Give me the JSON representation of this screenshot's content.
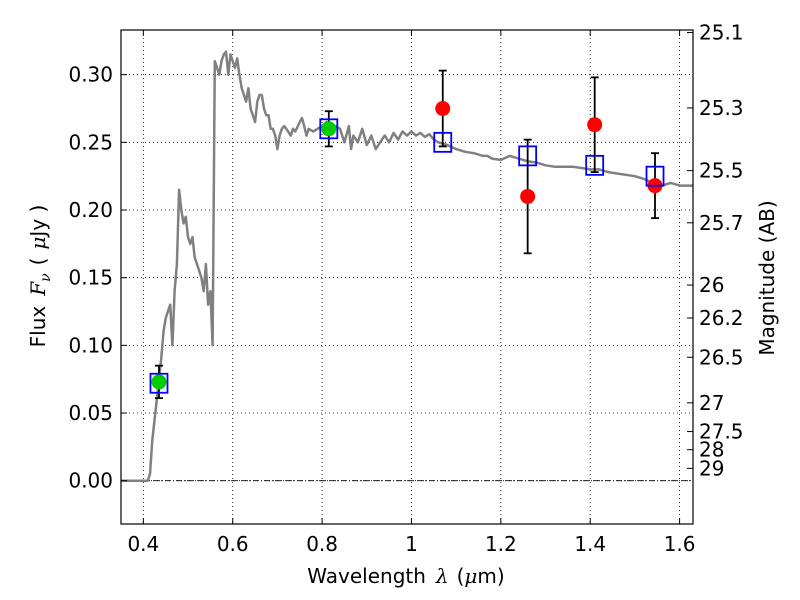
{
  "chart_data": {
    "type": "scatter",
    "xlabel": "Wavelength",
    "xlabel_symbol": "λ",
    "xlabel_unit_open": "(",
    "xlabel_unit_mu": "μ",
    "xlabel_unit_rest": "m)",
    "ylabel": "Flux",
    "ylabel_symbol": "F",
    "ylabel_symbol_sub": "ν",
    "ylabel_unit_open": "(",
    "ylabel_unit_mu": "μ",
    "ylabel_unit_rest": "Jy )",
    "y2label": "Magnitude (AB)",
    "xlim": [
      0.35,
      1.63
    ],
    "ylim": [
      -0.032,
      0.333
    ],
    "grid": true,
    "x_ticks": [
      {
        "value": 0.4,
        "label": "0.4"
      },
      {
        "value": 0.6,
        "label": "0.6"
      },
      {
        "value": 0.8,
        "label": "0.8"
      },
      {
        "value": 1.0,
        "label": "1"
      },
      {
        "value": 1.2,
        "label": "1.2"
      },
      {
        "value": 1.4,
        "label": "1.4"
      },
      {
        "value": 1.6,
        "label": "1.6"
      }
    ],
    "y_ticks": [
      {
        "value": 0.0,
        "label": "0.00"
      },
      {
        "value": 0.05,
        "label": "0.05"
      },
      {
        "value": 0.1,
        "label": "0.10"
      },
      {
        "value": 0.15,
        "label": "0.15"
      },
      {
        "value": 0.2,
        "label": "0.20"
      },
      {
        "value": 0.25,
        "label": "0.25"
      },
      {
        "value": 0.3,
        "label": "0.30"
      }
    ],
    "y2_ticks": [
      {
        "value": 25.1,
        "label": "25.1"
      },
      {
        "value": 25.3,
        "label": "25.3"
      },
      {
        "value": 25.5,
        "label": "25.5"
      },
      {
        "value": 25.7,
        "label": "25.7"
      },
      {
        "value": 26.0,
        "label": "26"
      },
      {
        "value": 26.2,
        "label": "26.2"
      },
      {
        "value": 26.5,
        "label": "26.5"
      },
      {
        "value": 27.0,
        "label": "27"
      },
      {
        "value": 27.5,
        "label": "27.5"
      },
      {
        "value": 28.0,
        "label": "28"
      },
      {
        "value": 29.0,
        "label": "29"
      }
    ],
    "colors": {
      "model": "#808080",
      "green": "#00cc00",
      "red": "#ff0000",
      "blue": "#0000ff",
      "errorbar": "#000000",
      "zero_line": "#000000",
      "grid": "#000000"
    },
    "model_spectrum": [
      [
        0.35,
        0.0
      ],
      [
        0.41,
        0.0
      ],
      [
        0.415,
        0.005
      ],
      [
        0.42,
        0.03
      ],
      [
        0.43,
        0.06
      ],
      [
        0.44,
        0.09
      ],
      [
        0.445,
        0.11
      ],
      [
        0.45,
        0.12
      ],
      [
        0.455,
        0.125
      ],
      [
        0.46,
        0.13
      ],
      [
        0.465,
        0.1
      ],
      [
        0.47,
        0.14
      ],
      [
        0.475,
        0.16
      ],
      [
        0.48,
        0.215
      ],
      [
        0.485,
        0.2
      ],
      [
        0.49,
        0.19
      ],
      [
        0.495,
        0.195
      ],
      [
        0.5,
        0.18
      ],
      [
        0.505,
        0.175
      ],
      [
        0.51,
        0.18
      ],
      [
        0.515,
        0.165
      ],
      [
        0.52,
        0.16
      ],
      [
        0.525,
        0.155
      ],
      [
        0.53,
        0.15
      ],
      [
        0.535,
        0.14
      ],
      [
        0.54,
        0.16
      ],
      [
        0.545,
        0.13
      ],
      [
        0.55,
        0.14
      ],
      [
        0.555,
        0.1
      ],
      [
        0.56,
        0.31
      ],
      [
        0.565,
        0.305
      ],
      [
        0.57,
        0.3
      ],
      [
        0.575,
        0.31
      ],
      [
        0.58,
        0.315
      ],
      [
        0.585,
        0.317
      ],
      [
        0.59,
        0.3
      ],
      [
        0.595,
        0.315
      ],
      [
        0.6,
        0.31
      ],
      [
        0.605,
        0.305
      ],
      [
        0.61,
        0.312
      ],
      [
        0.615,
        0.3
      ],
      [
        0.62,
        0.29
      ],
      [
        0.625,
        0.285
      ],
      [
        0.63,
        0.28
      ],
      [
        0.635,
        0.29
      ],
      [
        0.64,
        0.275
      ],
      [
        0.645,
        0.27
      ],
      [
        0.65,
        0.265
      ],
      [
        0.655,
        0.28
      ],
      [
        0.66,
        0.285
      ],
      [
        0.665,
        0.285
      ],
      [
        0.67,
        0.275
      ],
      [
        0.675,
        0.27
      ],
      [
        0.68,
        0.27
      ],
      [
        0.685,
        0.26
      ],
      [
        0.69,
        0.26
      ],
      [
        0.695,
        0.255
      ],
      [
        0.7,
        0.245
      ],
      [
        0.705,
        0.255
      ],
      [
        0.71,
        0.26
      ],
      [
        0.715,
        0.262
      ],
      [
        0.72,
        0.26
      ],
      [
        0.73,
        0.255
      ],
      [
        0.735,
        0.26
      ],
      [
        0.74,
        0.258
      ],
      [
        0.75,
        0.265
      ],
      [
        0.755,
        0.268
      ],
      [
        0.76,
        0.262
      ],
      [
        0.765,
        0.255
      ],
      [
        0.77,
        0.26
      ],
      [
        0.78,
        0.258
      ],
      [
        0.79,
        0.26
      ],
      [
        0.8,
        0.262
      ],
      [
        0.81,
        0.265
      ],
      [
        0.82,
        0.26
      ],
      [
        0.83,
        0.262
      ],
      [
        0.84,
        0.26
      ],
      [
        0.845,
        0.255
      ],
      [
        0.85,
        0.25
      ],
      [
        0.86,
        0.262
      ],
      [
        0.865,
        0.245
      ],
      [
        0.87,
        0.255
      ],
      [
        0.88,
        0.25
      ],
      [
        0.89,
        0.26
      ],
      [
        0.9,
        0.248
      ],
      [
        0.91,
        0.255
      ],
      [
        0.92,
        0.245
      ],
      [
        0.93,
        0.25
      ],
      [
        0.94,
        0.255
      ],
      [
        0.95,
        0.25
      ],
      [
        0.96,
        0.257
      ],
      [
        0.97,
        0.252
      ],
      [
        0.98,
        0.258
      ],
      [
        0.99,
        0.255
      ],
      [
        1.0,
        0.258
      ],
      [
        1.01,
        0.255
      ],
      [
        1.02,
        0.257
      ],
      [
        1.03,
        0.254
      ],
      [
        1.04,
        0.256
      ],
      [
        1.05,
        0.252
      ],
      [
        1.06,
        0.25
      ],
      [
        1.08,
        0.248
      ],
      [
        1.1,
        0.245
      ],
      [
        1.12,
        0.243
      ],
      [
        1.14,
        0.242
      ],
      [
        1.16,
        0.24
      ],
      [
        1.17,
        0.24
      ],
      [
        1.18,
        0.238
      ],
      [
        1.2,
        0.237
      ],
      [
        1.22,
        0.24
      ],
      [
        1.24,
        0.238
      ],
      [
        1.26,
        0.236
      ],
      [
        1.28,
        0.235
      ],
      [
        1.3,
        0.233
      ],
      [
        1.32,
        0.232
      ],
      [
        1.34,
        0.232
      ],
      [
        1.36,
        0.232
      ],
      [
        1.38,
        0.231
      ],
      [
        1.4,
        0.23
      ],
      [
        1.42,
        0.23
      ],
      [
        1.44,
        0.228
      ],
      [
        1.46,
        0.227
      ],
      [
        1.48,
        0.226
      ],
      [
        1.5,
        0.225
      ],
      [
        1.52,
        0.223
      ],
      [
        1.54,
        0.22
      ],
      [
        1.56,
        0.218
      ],
      [
        1.58,
        0.22
      ],
      [
        1.6,
        0.218
      ],
      [
        1.62,
        0.218
      ],
      [
        1.63,
        0.218
      ]
    ],
    "model_points": {
      "x": [
        0.435,
        0.815,
        1.07,
        1.26,
        1.41,
        1.545
      ],
      "y": [
        0.072,
        0.26,
        0.25,
        0.24,
        0.233,
        0.225
      ]
    },
    "green_points": {
      "x": [
        0.435,
        0.815
      ],
      "y": [
        0.073,
        0.26
      ],
      "yerr": [
        0.012,
        0.013
      ]
    },
    "red_points": {
      "x": [
        1.07,
        1.26,
        1.41,
        1.545
      ],
      "y": [
        0.275,
        0.21,
        0.263,
        0.218
      ],
      "yerr": [
        0.028,
        0.042,
        0.035,
        0.024
      ]
    }
  }
}
